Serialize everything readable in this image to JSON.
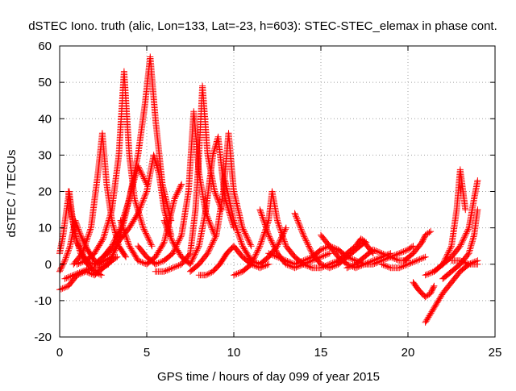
{
  "chart_data": {
    "type": "scatter",
    "title": "dSTEC Iono. truth (alic, Lon=133, Lat=-23, h=603): STEC-STEC_elemax in phase cont.",
    "xlabel": "GPS time / hours of day 099 of year 2015",
    "ylabel": "dSTEC  / TECUs",
    "xlim": [
      0,
      25
    ],
    "ylim": [
      -20,
      60
    ],
    "xticks": [
      0,
      5,
      10,
      15,
      20,
      25
    ],
    "xtick_labels": [
      "0",
      "5",
      "10",
      "15",
      "20",
      "25"
    ],
    "yticks": [
      -20,
      -10,
      0,
      10,
      20,
      30,
      40,
      50,
      60
    ],
    "ytick_labels": [
      "-20",
      "-10",
      "0",
      "10",
      "20",
      "30",
      "40",
      "50",
      "60"
    ],
    "grid": true,
    "marker": "+",
    "color": "#ff0000",
    "series": [
      {
        "x": [
          0.0,
          0.2,
          0.4,
          0.55,
          0.7,
          0.9,
          1.2,
          1.6,
          2.0,
          2.4
        ],
        "y": [
          3,
          8,
          15,
          20,
          14,
          8,
          3,
          0,
          -2,
          -3
        ]
      },
      {
        "x": [
          0.0,
          0.3,
          0.6,
          0.9,
          1.2,
          1.6,
          2.0,
          2.3
        ],
        "y": [
          -2,
          1,
          5,
          12,
          8,
          4,
          1,
          0
        ]
      },
      {
        "x": [
          0.0,
          0.5,
          1.0,
          1.5,
          2.0,
          2.5,
          3.0,
          3.3
        ],
        "y": [
          -7,
          -6,
          -3,
          -2,
          -3,
          -1,
          1,
          2
        ]
      },
      {
        "x": [
          0.5,
          0.7,
          1.0,
          1.4,
          1.8,
          2.2,
          2.6,
          3.0
        ],
        "y": [
          20,
          13,
          6,
          2,
          0,
          0,
          1,
          2
        ]
      },
      {
        "x": [
          0.8,
          1.3,
          1.8,
          2.2,
          2.45,
          2.7,
          3.0,
          3.4,
          3.8
        ],
        "y": [
          0,
          3,
          10,
          25,
          36,
          22,
          12,
          5,
          2
        ]
      },
      {
        "x": [
          1.0,
          1.5,
          2.0,
          2.5,
          3.0,
          3.4,
          3.7,
          4.0,
          4.3,
          4.8,
          5.3
        ],
        "y": [
          0,
          1,
          3,
          7,
          15,
          30,
          53,
          30,
          18,
          10,
          5
        ]
      },
      {
        "x": [
          0.3,
          0.8,
          1.3,
          1.8,
          2.3,
          2.8,
          3.3,
          3.7,
          4.1,
          4.5,
          5.0
        ],
        "y": [
          -4,
          -3,
          -2,
          -1,
          -1,
          0,
          5,
          12,
          20,
          27,
          22
        ]
      },
      {
        "x": [
          2.0,
          2.5,
          3.0,
          3.5,
          4.0,
          4.5,
          4.9,
          5.2,
          5.5,
          5.9,
          6.4
        ],
        "y": [
          0,
          2,
          5,
          10,
          18,
          30,
          44,
          57,
          40,
          22,
          12
        ]
      },
      {
        "x": [
          2.5,
          3.0,
          3.5,
          4.0,
          4.5,
          5.0,
          5.4,
          5.7,
          6.0,
          6.4
        ],
        "y": [
          2,
          4,
          7,
          10,
          14,
          20,
          30,
          25,
          15,
          8
        ]
      },
      {
        "x": [
          3.5,
          4.0,
          4.5,
          5.0,
          5.5,
          6.0,
          6.3,
          6.6,
          7.0
        ],
        "y": [
          12,
          5,
          1,
          0,
          2,
          6,
          12,
          18,
          22
        ]
      },
      {
        "x": [
          4.5,
          5.0,
          5.5,
          6.0,
          6.5,
          7.0,
          7.4,
          7.7,
          8.0,
          8.4,
          8.9
        ],
        "y": [
          5,
          2,
          0,
          1,
          3,
          8,
          20,
          42,
          25,
          14,
          8
        ]
      },
      {
        "x": [
          5.5,
          6.0,
          6.5,
          7.0,
          7.5,
          7.8,
          8.0,
          8.2,
          8.5,
          8.9,
          9.3
        ],
        "y": [
          -2,
          -2,
          -1,
          0,
          3,
          15,
          30,
          49,
          30,
          20,
          15
        ]
      },
      {
        "x": [
          6.0,
          6.5,
          7.0,
          7.5,
          8.0,
          8.4,
          8.8,
          9.1,
          9.5,
          10.0
        ],
        "y": [
          12,
          6,
          2,
          0,
          5,
          15,
          30,
          35,
          18,
          10
        ]
      },
      {
        "x": [
          7.5,
          8.0,
          8.5,
          9.0,
          9.4,
          9.7,
          10.0,
          10.5,
          11.0
        ],
        "y": [
          -2,
          0,
          3,
          8,
          20,
          36,
          20,
          10,
          5
        ]
      },
      {
        "x": [
          8.0,
          8.4,
          8.8,
          9.2,
          9.6,
          10.0,
          10.5,
          11.0,
          11.5,
          12.0
        ],
        "y": [
          -3,
          -3,
          -2,
          0,
          3,
          5,
          2,
          0,
          -1,
          0
        ]
      },
      {
        "x": [
          9.5,
          10.0,
          10.5,
          11.0,
          11.5,
          12.0,
          12.5,
          13.0
        ],
        "y": [
          23,
          12,
          5,
          1,
          0,
          2,
          5,
          10
        ]
      },
      {
        "x": [
          10.0,
          10.5,
          11.0,
          11.5,
          12.0,
          12.2,
          12.5,
          13.0,
          13.5,
          14.0
        ],
        "y": [
          -3,
          -2,
          0,
          5,
          12,
          20,
          12,
          5,
          2,
          0
        ]
      },
      {
        "x": [
          11.5,
          12.0,
          12.5,
          13.0,
          13.5,
          14.0,
          14.5,
          15.0,
          15.5
        ],
        "y": [
          15,
          8,
          3,
          0,
          -1,
          0,
          1,
          2,
          3
        ]
      },
      {
        "x": [
          12.0,
          12.5,
          13.0,
          13.5,
          14.0,
          14.5,
          15.0,
          15.5,
          16.0,
          16.5,
          17.0
        ],
        "y": [
          3,
          2,
          1,
          0,
          1,
          2,
          4,
          5,
          4,
          2,
          1
        ]
      },
      {
        "x": [
          13.5,
          14.0,
          14.5,
          15.0,
          15.5,
          16.0,
          16.5,
          17.0,
          17.5,
          18.0
        ],
        "y": [
          14,
          8,
          3,
          0,
          -1,
          0,
          2,
          4,
          6,
          3
        ]
      },
      {
        "x": [
          15.0,
          15.5,
          16.0,
          16.5,
          17.0,
          17.5,
          18.0,
          18.5,
          19.0
        ],
        "y": [
          8,
          5,
          2,
          0,
          -1,
          0,
          1,
          2,
          3
        ]
      },
      {
        "x": [
          14.0,
          14.5,
          15.0,
          15.5,
          16.0,
          16.5,
          17.0,
          17.3,
          17.6
        ],
        "y": [
          0,
          -1,
          -1,
          0,
          1,
          3,
          5,
          7,
          6
        ]
      },
      {
        "x": [
          16.5,
          17.0,
          17.5,
          18.0,
          18.5,
          19.0,
          19.5,
          20.0
        ],
        "y": [
          -1,
          0,
          2,
          4,
          3,
          2,
          1,
          1
        ]
      },
      {
        "x": [
          17.0,
          17.5,
          18.0,
          18.5,
          19.0,
          19.5,
          20.0,
          20.3
        ],
        "y": [
          1,
          0,
          0,
          1,
          2,
          3,
          4,
          5
        ]
      },
      {
        "x": [
          18.5,
          19.0,
          19.5,
          20.0,
          20.5,
          21.0
        ],
        "y": [
          0,
          -1,
          -1,
          0,
          1,
          2
        ]
      },
      {
        "x": [
          19.8,
          20.3,
          20.8,
          21.0,
          21.3
        ],
        "y": [
          1,
          3,
          6,
          8,
          9
        ]
      },
      {
        "x": [
          20.3,
          20.6,
          21.0,
          21.3,
          21.5
        ],
        "y": [
          -5,
          -7,
          -9,
          -8,
          -6
        ]
      },
      {
        "x": [
          21.0,
          21.5,
          22.0,
          22.5,
          22.8,
          23.0,
          23.3
        ],
        "y": [
          -3,
          -2,
          0,
          5,
          15,
          26,
          15
        ]
      },
      {
        "x": [
          21.0,
          21.5,
          22.0,
          22.5,
          23.0,
          23.5,
          24.0
        ],
        "y": [
          -16,
          -12,
          -8,
          -5,
          -2,
          0,
          1
        ]
      },
      {
        "x": [
          21.5,
          22.0,
          22.5,
          23.0,
          23.5,
          23.8,
          24.0
        ],
        "y": [
          -2,
          0,
          2,
          5,
          10,
          18,
          23
        ]
      },
      {
        "x": [
          22.0,
          22.5,
          23.0,
          23.5,
          23.8,
          24.0
        ],
        "y": [
          -4,
          -2,
          0,
          3,
          8,
          15
        ]
      },
      {
        "x": [
          22.5,
          23.0,
          23.5,
          24.0
        ],
        "y": [
          1,
          1,
          0,
          0
        ]
      }
    ]
  }
}
